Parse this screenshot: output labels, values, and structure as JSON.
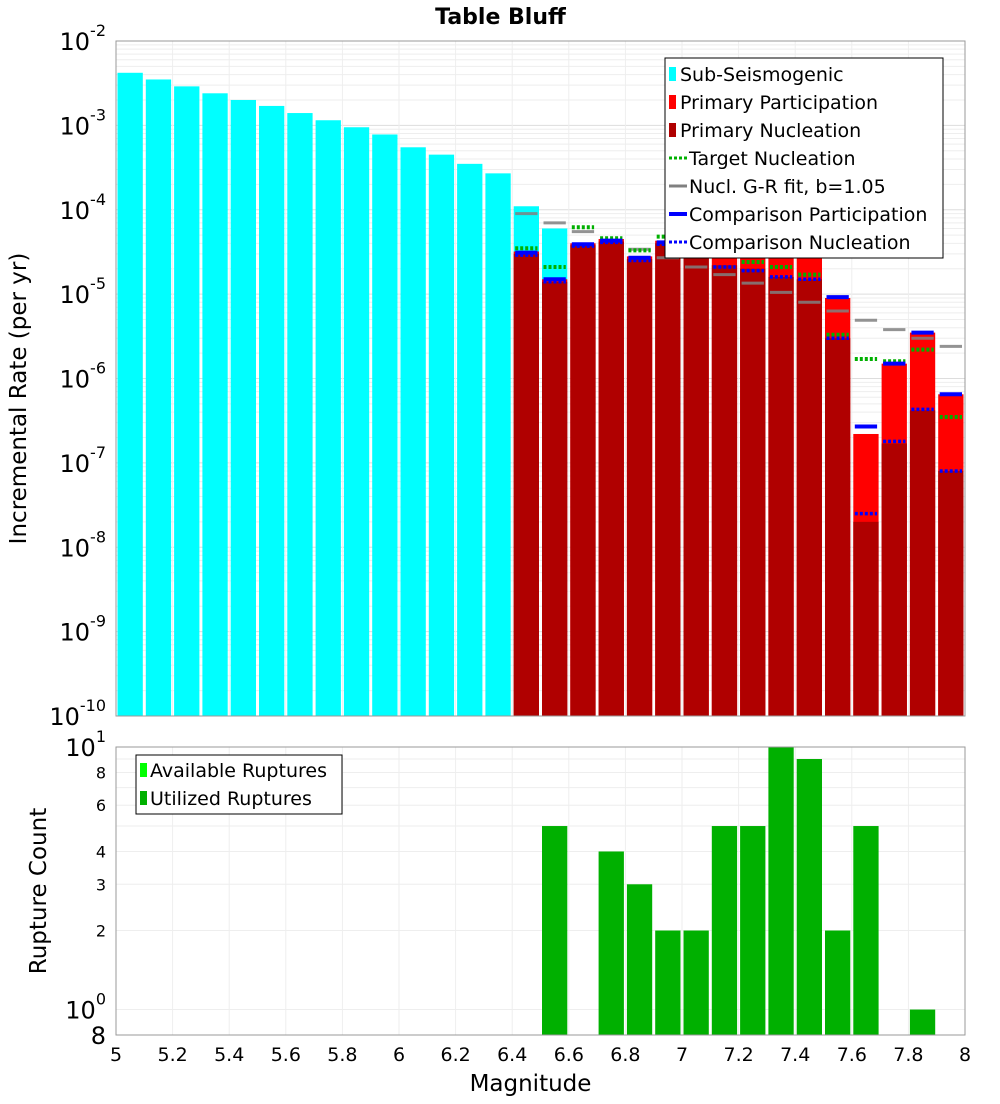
{
  "chart_data": [
    {
      "type": "bar",
      "title": "Table Bluff",
      "xlabel": "",
      "ylabel": "Incremental Rate (per yr)",
      "xlim": [
        5,
        8
      ],
      "ylim": [
        1e-10,
        0.01
      ],
      "yscale": "log",
      "y_tick_exponents": [
        "-2",
        "-3",
        "-4",
        "-5",
        "-6",
        "-7",
        "-8",
        "-9",
        "-10"
      ],
      "y_tick_base": "10",
      "bar_width": 0.1,
      "colors": {
        "sub_seismogenic": "#00ffff",
        "primary_participation": "#ff0000",
        "primary_nucleation": "#b00000",
        "target_nucleation": "#00b000",
        "gr_fit": "#808080",
        "comparison_participation": "#0000ff",
        "comparison_nucleation": "#0000ff"
      },
      "legend": {
        "placement": "top-right",
        "entries": [
          {
            "label": "Sub-Seismogenic",
            "style": "bar",
            "color": "#00ffff"
          },
          {
            "label": "Primary Participation",
            "style": "bar",
            "color": "#ff0000"
          },
          {
            "label": "Primary Nucleation",
            "style": "bar",
            "color": "#b00000"
          },
          {
            "label": "Target Nucleation",
            "style": "dotted",
            "color": "#00b000"
          },
          {
            "label": "Nucl. G-R fit, b=1.05",
            "style": "solid",
            "color": "#808080"
          },
          {
            "label": "Comparison Participation",
            "style": "solid-thick",
            "color": "#0000ff"
          },
          {
            "label": "Comparison Nucleation",
            "style": "dotted",
            "color": "#0000ff"
          }
        ]
      },
      "series": [
        {
          "name": "Sub-Seismogenic",
          "x": [
            5.05,
            5.15,
            5.25,
            5.35,
            5.45,
            5.55,
            5.65,
            5.75,
            5.85,
            5.95,
            6.05,
            6.15,
            6.25,
            6.35,
            6.45,
            6.55
          ],
          "values": [
            0.0042,
            0.0035,
            0.0029,
            0.0024,
            0.002,
            0.0017,
            0.0014,
            0.00115,
            0.00095,
            0.00078,
            0.00055,
            0.00045,
            0.00035,
            0.00027,
            0.00011,
            6e-05
          ]
        },
        {
          "name": "Primary Participation",
          "x": [
            6.45,
            6.55,
            6.65,
            6.75,
            6.85,
            6.95,
            7.05,
            7.15,
            7.25,
            7.35,
            7.45,
            7.55,
            7.65,
            7.75,
            7.85,
            7.95
          ],
          "values": [
            3.2e-05,
            1.5e-05,
            4e-05,
            4.5e-05,
            2.8e-05,
            4.3e-05,
            0.0001,
            5.5e-05,
            5e-05,
            5.2e-05,
            5.3e-05,
            9e-06,
            2.2e-07,
            1.5e-06,
            3.5e-06,
            6.5e-07
          ]
        },
        {
          "name": "Primary Nucleation",
          "x": [
            6.45,
            6.55,
            6.65,
            6.75,
            6.85,
            6.95,
            7.05,
            7.15,
            7.25,
            7.35,
            7.45,
            7.55,
            7.65,
            7.75,
            7.85,
            7.95
          ],
          "values": [
            3e-05,
            1.4e-05,
            3.8e-05,
            4.2e-05,
            2.6e-05,
            4e-05,
            3e-05,
            2.2e-05,
            2e-05,
            1.6e-05,
            1.5e-05,
            3e-06,
            2e-08,
            1.7e-07,
            4.2e-07,
            8e-08
          ]
        },
        {
          "name": "Target Nucleation",
          "x": [
            6.45,
            6.55,
            6.65,
            6.75,
            6.85,
            6.95,
            7.05,
            7.15,
            7.25,
            7.35,
            7.45,
            7.55,
            7.65,
            7.75,
            7.85,
            7.95
          ],
          "values": [
            3.5e-05,
            2.1e-05,
            6.2e-05,
            4.6e-05,
            3.3e-05,
            4.8e-05,
            4.9e-05,
            4.3e-05,
            2.4e-05,
            2.1e-05,
            1.7e-05,
            3.3e-06,
            1.7e-06,
            1.6e-06,
            2.2e-06,
            3.5e-07
          ]
        },
        {
          "name": "Nucl. G-R fit, b=1.05",
          "x": [
            6.45,
            6.55,
            6.65,
            6.75,
            6.85,
            6.95,
            7.05,
            7.15,
            7.25,
            7.35,
            7.45,
            7.55,
            7.65,
            7.75,
            7.85,
            7.95
          ],
          "values": [
            9e-05,
            7e-05,
            5.5e-05,
            4.3e-05,
            3.4e-05,
            2.7e-05,
            2.1e-05,
            1.7e-05,
            1.35e-05,
            1.05e-05,
            8e-06,
            6.3e-06,
            4.9e-06,
            3.8e-06,
            3e-06,
            2.4e-06
          ]
        },
        {
          "name": "Comparison Participation",
          "x": [
            6.45,
            6.55,
            6.65,
            6.75,
            6.85,
            6.95,
            7.05,
            7.15,
            7.25,
            7.35,
            7.45,
            7.55,
            7.65,
            7.75,
            7.85,
            7.95
          ],
          "values": [
            3.1e-05,
            1.5e-05,
            3.9e-05,
            4.3e-05,
            2.7e-05,
            4.1e-05,
            0.000105,
            5.6e-05,
            5.1e-05,
            5.1e-05,
            5.5e-05,
            9.2e-06,
            2.7e-07,
            1.5e-06,
            3.5e-06,
            6.5e-07
          ]
        },
        {
          "name": "Comparison Nucleation",
          "x": [
            6.45,
            6.55,
            6.65,
            6.75,
            6.85,
            6.95,
            7.05,
            7.15,
            7.25,
            7.35,
            7.45,
            7.55,
            7.65,
            7.75,
            7.85,
            7.95
          ],
          "values": [
            2.9e-05,
            1.4e-05,
            3.7e-05,
            4.1e-05,
            2.5e-05,
            3.9e-05,
            2.9e-05,
            2.1e-05,
            1.9e-05,
            1.6e-05,
            1.5e-05,
            3e-06,
            2.5e-08,
            1.8e-07,
            4.3e-07,
            8e-08
          ]
        }
      ]
    },
    {
      "type": "bar",
      "title": "",
      "xlabel": "Magnitude",
      "ylabel": "Rupture Count",
      "xlim": [
        5,
        8
      ],
      "ylim": [
        0.8,
        10
      ],
      "yscale": "log",
      "bar_width": 0.1,
      "x_ticks": [
        "5",
        "5.2",
        "5.4",
        "5.6",
        "5.8",
        "6",
        "6.2",
        "6.4",
        "6.6",
        "6.8",
        "7",
        "7.2",
        "7.4",
        "7.6",
        "7.8",
        "8"
      ],
      "y_ticks": [
        {
          "value": 10,
          "label": "10",
          "sup": "1",
          "major": true
        },
        {
          "value": 8,
          "label": "8",
          "sup": "",
          "major": false
        },
        {
          "value": 6,
          "label": "6",
          "sup": "",
          "major": false
        },
        {
          "value": 4,
          "label": "4",
          "sup": "",
          "major": false
        },
        {
          "value": 3,
          "label": "3",
          "sup": "",
          "major": false
        },
        {
          "value": 2,
          "label": "2",
          "sup": "",
          "major": false
        },
        {
          "value": 1,
          "label": "10",
          "sup": "0",
          "major": true
        },
        {
          "value": 0.8,
          "label": "8",
          "sup": "",
          "major": true
        }
      ],
      "colors": {
        "available": "#00ff00",
        "utilized": "#00b000"
      },
      "legend": {
        "placement": "top-left",
        "entries": [
          {
            "label": "Available Ruptures",
            "style": "bar",
            "color": "#00ff00"
          },
          {
            "label": "Utilized Ruptures",
            "style": "bar",
            "color": "#00b000"
          }
        ]
      },
      "series": [
        {
          "name": "Utilized Ruptures",
          "x": [
            6.55,
            6.75,
            6.85,
            6.95,
            7.05,
            7.15,
            7.25,
            7.35,
            7.45,
            7.55,
            7.65,
            7.85
          ],
          "values": [
            5,
            4,
            3,
            2,
            2,
            5,
            5,
            10,
            9,
            2,
            5,
            1
          ]
        }
      ]
    }
  ]
}
